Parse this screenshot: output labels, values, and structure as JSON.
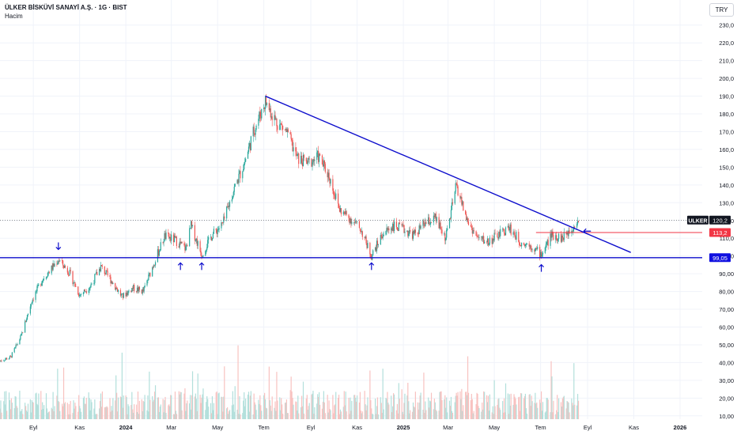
{
  "header": {
    "title": "ÜLKER BİSKÜVİ SANAYİ A.Ş. · 1G · BIST",
    "volume_label": "Hacim",
    "currency": "TRY"
  },
  "colors": {
    "up": "#26a69a",
    "down": "#ef5350",
    "vol_up": "#b2dfdb",
    "vol_down": "#f8c2c0",
    "line": "#0d0dcc",
    "resistance": "#f23645",
    "grid": "#f0f3fa"
  },
  "chart_data": {
    "type": "candlestick",
    "y_axis": {
      "range": [
        5,
        233
      ],
      "ticks": [
        "230,0",
        "220,0",
        "210,0",
        "200,0",
        "190,0",
        "180,0",
        "170,0",
        "160,0",
        "150,0",
        "140,0",
        "130,0",
        "120,0",
        "110,0",
        "100,0",
        "90,00",
        "80,00",
        "70,00",
        "60,00",
        "50,00",
        "40,00",
        "30,00",
        "20,00",
        "10,00"
      ]
    },
    "x_axis": {
      "labels": [
        "Eyl",
        "Kas",
        "2024",
        "Mar",
        "May",
        "Tem",
        "Eyl",
        "Kas",
        "2025",
        "Mar",
        "May",
        "Tem",
        "Eyl",
        "Kas",
        "2026"
      ]
    },
    "series": [
      {
        "date": "2023-07-19",
        "close": 41
      },
      {
        "date": "2023-08-02",
        "close": 43
      },
      {
        "date": "2023-08-16",
        "close": 55
      },
      {
        "date": "2023-08-30",
        "close": 75
      },
      {
        "date": "2023-09-13",
        "close": 87
      },
      {
        "date": "2023-09-27",
        "close": 94
      },
      {
        "date": "2023-10-04",
        "close": 98
      },
      {
        "date": "2023-10-18",
        "close": 91
      },
      {
        "date": "2023-11-01",
        "close": 78
      },
      {
        "date": "2023-11-15",
        "close": 83
      },
      {
        "date": "2023-11-29",
        "close": 94
      },
      {
        "date": "2023-12-13",
        "close": 86
      },
      {
        "date": "2023-12-27",
        "close": 77
      },
      {
        "date": "2024-01-10",
        "close": 82
      },
      {
        "date": "2024-01-24",
        "close": 80
      },
      {
        "date": "2024-02-07",
        "close": 96
      },
      {
        "date": "2024-02-21",
        "close": 111
      },
      {
        "date": "2024-03-06",
        "close": 109
      },
      {
        "date": "2024-03-20",
        "close": 104
      },
      {
        "date": "2024-03-27",
        "close": 117
      },
      {
        "date": "2024-04-10",
        "close": 101
      },
      {
        "date": "2024-04-24",
        "close": 112
      },
      {
        "date": "2024-05-08",
        "close": 118
      },
      {
        "date": "2024-05-22",
        "close": 137
      },
      {
        "date": "2024-06-05",
        "close": 152
      },
      {
        "date": "2024-06-19",
        "close": 172
      },
      {
        "date": "2024-07-03",
        "close": 187
      },
      {
        "date": "2024-07-17",
        "close": 176
      },
      {
        "date": "2024-07-31",
        "close": 170
      },
      {
        "date": "2024-08-14",
        "close": 155
      },
      {
        "date": "2024-08-28",
        "close": 152
      },
      {
        "date": "2024-09-11",
        "close": 156
      },
      {
        "date": "2024-09-25",
        "close": 145
      },
      {
        "date": "2024-10-09",
        "close": 126
      },
      {
        "date": "2024-10-23",
        "close": 121
      },
      {
        "date": "2024-11-06",
        "close": 115
      },
      {
        "date": "2024-11-20",
        "close": 100
      },
      {
        "date": "2024-12-04",
        "close": 112
      },
      {
        "date": "2024-12-18",
        "close": 117
      },
      {
        "date": "2025-01-01",
        "close": 115
      },
      {
        "date": "2025-01-15",
        "close": 112
      },
      {
        "date": "2025-01-29",
        "close": 118
      },
      {
        "date": "2025-02-12",
        "close": 121
      },
      {
        "date": "2025-02-26",
        "close": 110
      },
      {
        "date": "2025-03-12",
        "close": 140
      },
      {
        "date": "2025-03-26",
        "close": 120
      },
      {
        "date": "2025-04-09",
        "close": 110
      },
      {
        "date": "2025-04-23",
        "close": 108
      },
      {
        "date": "2025-05-07",
        "close": 112
      },
      {
        "date": "2025-05-21",
        "close": 116
      },
      {
        "date": "2025-06-04",
        "close": 108
      },
      {
        "date": "2025-06-18",
        "close": 106
      },
      {
        "date": "2025-07-02",
        "close": 101
      },
      {
        "date": "2025-07-16",
        "close": 112
      },
      {
        "date": "2025-07-30",
        "close": 110
      },
      {
        "date": "2025-08-13",
        "close": 117
      },
      {
        "date": "2025-08-20",
        "close": 120.2
      }
    ],
    "annotations": {
      "support": {
        "value": 99.05,
        "label": "99,05"
      },
      "resistance": {
        "value": 113.2,
        "label": "113,2",
        "from": "2025-06-25"
      },
      "trendline": {
        "from": {
          "date": "2024-07-03",
          "value": 190
        },
        "to": {
          "date": "2025-10-28",
          "value": 102
        }
      },
      "last_price": {
        "value": 120.2,
        "label": "120,2",
        "symbol": "ULKER"
      },
      "markers": [
        {
          "date": "2023-10-04",
          "value": 105,
          "dir": "down"
        },
        {
          "date": "2024-03-13",
          "value": 93,
          "dir": "up"
        },
        {
          "date": "2024-04-10",
          "value": 93,
          "dir": "up"
        },
        {
          "date": "2024-11-20",
          "value": 93,
          "dir": "up"
        },
        {
          "date": "2025-07-02",
          "value": 92,
          "dir": "up"
        },
        {
          "date": "2025-08-27",
          "value": 114,
          "dir": "left"
        }
      ]
    }
  }
}
